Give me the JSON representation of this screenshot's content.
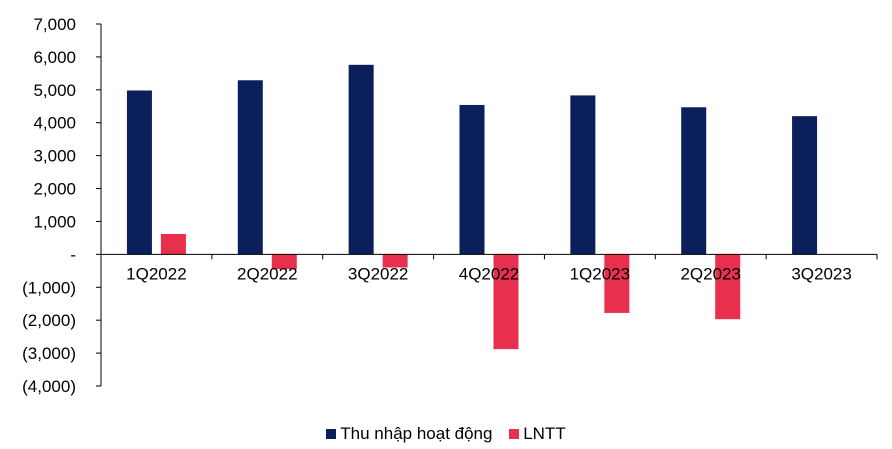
{
  "chart_data": {
    "type": "bar",
    "categories": [
      "1Q2022",
      "2Q2022",
      "3Q2022",
      "4Q2022",
      "1Q2023",
      "2Q2023",
      "3Q2023"
    ],
    "series": [
      {
        "name": "Thu nhập hoạt động",
        "color": "#0a1f5c",
        "values": [
          4980,
          5290,
          5760,
          4540,
          4830,
          4470,
          4200
        ]
      },
      {
        "name": "LNTT",
        "color": "#e8304e",
        "values": [
          620,
          -450,
          -400,
          -2880,
          -1780,
          -1970,
          null
        ]
      }
    ],
    "ylim": [
      -4000,
      7000
    ],
    "y_ticks": [
      {
        "value": 7000,
        "label": "7,000"
      },
      {
        "value": 6000,
        "label": "6,000"
      },
      {
        "value": 5000,
        "label": "5,000"
      },
      {
        "value": 4000,
        "label": "4,000"
      },
      {
        "value": 3000,
        "label": "3,000"
      },
      {
        "value": 2000,
        "label": "2,000"
      },
      {
        "value": 1000,
        "label": "1,000"
      },
      {
        "value": 0,
        "label": "-"
      },
      {
        "value": -1000,
        "label": "(1,000)"
      },
      {
        "value": -2000,
        "label": "(2,000)"
      },
      {
        "value": -3000,
        "label": "(3,000)"
      },
      {
        "value": -4000,
        "label": "(4,000)"
      }
    ],
    "title": "",
    "xlabel": "",
    "ylabel": "",
    "grid": false,
    "legend_position": "bottom-center"
  }
}
